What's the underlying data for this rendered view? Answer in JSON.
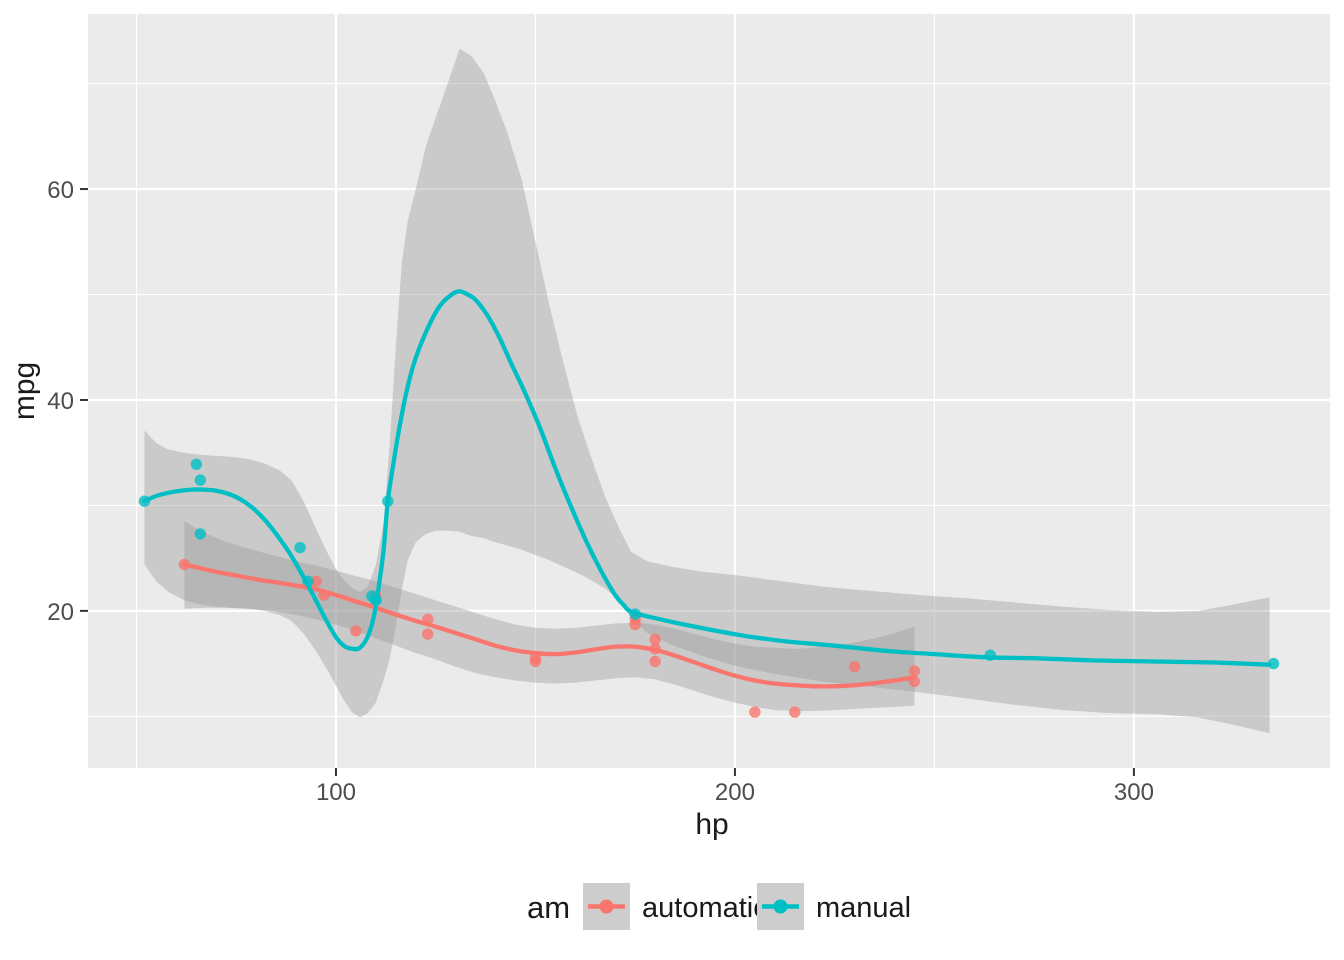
{
  "chart_data": {
    "type": "scatter",
    "title": "",
    "xlabel": "hp",
    "ylabel": "mpg",
    "xlim": [
      37.85,
      349.15
    ],
    "ylim": [
      5.1,
      76.6
    ],
    "x_ticks": {
      "major": [
        100,
        200,
        300
      ],
      "minor": [
        50,
        150,
        250,
        350
      ],
      "labels": [
        "100",
        "200",
        "300"
      ]
    },
    "y_ticks": {
      "major": [
        20,
        40,
        60
      ],
      "minor": [
        10,
        30,
        50,
        70
      ],
      "labels": [
        "20",
        "40",
        "60"
      ]
    },
    "grid": {
      "show": true,
      "color": "#FFFFFF",
      "major_width": 2.2,
      "minor_width": 1.1
    },
    "panel_bg": "#EBEBEB",
    "tick_color": "#333333",
    "tick_label_color": "#4D4D4D",
    "ribbon_color": "#999999",
    "ribbon_opacity": 0.4,
    "point_radius": 5.7,
    "line_width": 4.3,
    "legend": {
      "title": "am",
      "position": "bottom",
      "key_fill": "#CDCDCD",
      "items": [
        {
          "label": "automatic"
        },
        {
          "label": "manual"
        }
      ]
    },
    "series": [
      {
        "name": "automatic",
        "color": "#F8766D",
        "points": [
          [
            110,
            21.4
          ],
          [
            175,
            18.7
          ],
          [
            105,
            18.1
          ],
          [
            245,
            14.3
          ],
          [
            62,
            24.4
          ],
          [
            95,
            22.8
          ],
          [
            123,
            19.2
          ],
          [
            123,
            17.8
          ],
          [
            180,
            16.4
          ],
          [
            180,
            17.3
          ],
          [
            180,
            15.2
          ],
          [
            205,
            10.4
          ],
          [
            215,
            10.4
          ],
          [
            230,
            14.7
          ],
          [
            97,
            21.5
          ],
          [
            150,
            15.5
          ],
          [
            150,
            15.2
          ],
          [
            245,
            13.3
          ],
          [
            175,
            19.2
          ]
        ],
        "smooth": [
          [
            62,
            24.4
          ],
          [
            66,
            24.05
          ],
          [
            70,
            23.7
          ],
          [
            75,
            23.35
          ],
          [
            80,
            23.0
          ],
          [
            85,
            22.7
          ],
          [
            90,
            22.4
          ],
          [
            95,
            22.05
          ],
          [
            100,
            21.5
          ],
          [
            105,
            20.9
          ],
          [
            110,
            20.3
          ],
          [
            115,
            19.65
          ],
          [
            120,
            19.05
          ],
          [
            125,
            18.5
          ],
          [
            130,
            17.9
          ],
          [
            135,
            17.3
          ],
          [
            140,
            16.7
          ],
          [
            145,
            16.25
          ],
          [
            150,
            16.0
          ],
          [
            155,
            15.9
          ],
          [
            160,
            16.05
          ],
          [
            165,
            16.35
          ],
          [
            170,
            16.6
          ],
          [
            175,
            16.6
          ],
          [
            180,
            16.3
          ],
          [
            185,
            15.75
          ],
          [
            190,
            15.1
          ],
          [
            195,
            14.45
          ],
          [
            200,
            13.85
          ],
          [
            205,
            13.4
          ],
          [
            210,
            13.1
          ],
          [
            215,
            12.95
          ],
          [
            220,
            12.85
          ],
          [
            225,
            12.85
          ],
          [
            230,
            12.95
          ],
          [
            235,
            13.15
          ],
          [
            240,
            13.4
          ],
          [
            245,
            13.7
          ]
        ],
        "ribbon": [
          [
            62,
            20.2,
            28.5
          ],
          [
            67,
            20.3,
            27.4
          ],
          [
            72,
            20.3,
            26.6
          ],
          [
            78,
            20.2,
            25.9
          ],
          [
            84,
            20.0,
            25.3
          ],
          [
            90,
            19.6,
            24.7
          ],
          [
            95,
            19.2,
            24.3
          ],
          [
            100,
            18.7,
            23.8
          ],
          [
            105,
            18.1,
            23.3
          ],
          [
            110,
            17.4,
            22.8
          ],
          [
            115,
            16.7,
            22.2
          ],
          [
            120,
            16.0,
            21.6
          ],
          [
            125,
            15.4,
            21.0
          ],
          [
            130,
            14.7,
            20.4
          ],
          [
            135,
            14.1,
            19.8
          ],
          [
            140,
            13.7,
            19.2
          ],
          [
            145,
            13.4,
            18.7
          ],
          [
            150,
            13.2,
            18.4
          ],
          [
            155,
            13.1,
            18.3
          ],
          [
            160,
            13.2,
            18.4
          ],
          [
            165,
            13.4,
            18.6
          ],
          [
            170,
            13.6,
            18.8
          ],
          [
            175,
            13.7,
            18.9
          ],
          [
            180,
            13.5,
            18.7
          ],
          [
            185,
            13.0,
            18.3
          ],
          [
            190,
            12.4,
            17.8
          ],
          [
            195,
            11.8,
            17.3
          ],
          [
            200,
            11.3,
            16.9
          ],
          [
            205,
            10.9,
            16.6
          ],
          [
            210,
            10.6,
            16.5
          ],
          [
            215,
            10.5,
            16.4
          ],
          [
            220,
            10.5,
            16.5
          ],
          [
            225,
            10.6,
            16.7
          ],
          [
            230,
            10.7,
            17.0
          ],
          [
            235,
            10.8,
            17.4
          ],
          [
            240,
            10.9,
            17.9
          ],
          [
            245,
            11.0,
            18.5
          ]
        ]
      },
      {
        "name": "manual",
        "color": "#00BFC4",
        "points": [
          [
            110,
            21.0
          ],
          [
            110,
            21.0
          ],
          [
            93,
            22.8
          ],
          [
            66,
            32.4
          ],
          [
            52,
            30.4
          ],
          [
            65,
            33.9
          ],
          [
            66,
            27.3
          ],
          [
            91,
            26.0
          ],
          [
            113,
            30.4
          ],
          [
            264,
            15.8
          ],
          [
            175,
            19.7
          ],
          [
            335,
            15.0
          ],
          [
            109,
            21.4
          ]
        ],
        "smooth": [
          [
            52,
            30.4
          ],
          [
            55,
            30.9
          ],
          [
            58,
            31.2
          ],
          [
            61,
            31.4
          ],
          [
            64,
            31.5
          ],
          [
            67,
            31.5
          ],
          [
            70,
            31.4
          ],
          [
            73,
            31.1
          ],
          [
            76,
            30.6
          ],
          [
            79,
            29.8
          ],
          [
            82,
            28.7
          ],
          [
            85,
            27.3
          ],
          [
            88,
            25.7
          ],
          [
            91,
            23.8
          ],
          [
            94,
            21.7
          ],
          [
            97,
            19.5
          ],
          [
            100,
            17.5
          ],
          [
            102,
            16.7
          ],
          [
            104,
            16.4
          ],
          [
            106,
            16.5
          ],
          [
            108,
            17.6
          ],
          [
            109.5,
            19.5
          ],
          [
            111,
            23.0
          ],
          [
            112,
            26.0
          ],
          [
            113,
            30.4
          ],
          [
            114.5,
            34.2
          ],
          [
            116,
            37.6
          ],
          [
            118,
            41.3
          ],
          [
            120,
            44.0
          ],
          [
            123,
            46.8
          ],
          [
            126,
            48.9
          ],
          [
            129,
            50.0
          ],
          [
            131,
            50.3
          ],
          [
            133,
            50.0
          ],
          [
            135,
            49.5
          ],
          [
            138,
            48.0
          ],
          [
            141,
            45.9
          ],
          [
            144,
            43.4
          ],
          [
            147,
            41.0
          ],
          [
            151,
            37.5
          ],
          [
            155,
            33.5
          ],
          [
            159,
            29.8
          ],
          [
            163,
            26.4
          ],
          [
            167,
            23.4
          ],
          [
            170,
            21.5
          ],
          [
            172,
            20.6
          ],
          [
            174,
            19.9
          ],
          [
            179,
            19.4
          ],
          [
            186,
            18.8
          ],
          [
            194,
            18.2
          ],
          [
            203,
            17.6
          ],
          [
            213,
            17.1
          ],
          [
            225,
            16.7
          ],
          [
            238,
            16.2
          ],
          [
            250,
            15.9
          ],
          [
            263,
            15.6
          ],
          [
            276,
            15.5
          ],
          [
            290,
            15.3
          ],
          [
            305,
            15.2
          ],
          [
            320,
            15.1
          ],
          [
            334,
            14.9
          ]
        ],
        "ribbon": [
          [
            52,
            24.4,
            37.1
          ],
          [
            55,
            22.8,
            35.9
          ],
          [
            58,
            21.8,
            35.3
          ],
          [
            62,
            21.0,
            35.0
          ],
          [
            66,
            20.6,
            34.8
          ],
          [
            70,
            20.4,
            34.7
          ],
          [
            74,
            20.3,
            34.6
          ],
          [
            78,
            20.2,
            34.4
          ],
          [
            82,
            20.0,
            34.0
          ],
          [
            86,
            19.6,
            33.3
          ],
          [
            89,
            19.0,
            32.3
          ],
          [
            92,
            17.8,
            30.3
          ],
          [
            95,
            16.2,
            27.8
          ],
          [
            98,
            14.3,
            25.4
          ],
          [
            100,
            12.9,
            24.0
          ],
          [
            102,
            11.5,
            22.9
          ],
          [
            104,
            10.4,
            22.2
          ],
          [
            106,
            9.9,
            21.8
          ],
          [
            108,
            10.3,
            22.3
          ],
          [
            110,
            11.3,
            24.4
          ],
          [
            112,
            13.5,
            28.5
          ],
          [
            113.5,
            15.5,
            36.0
          ],
          [
            115,
            18.5,
            45.0
          ],
          [
            116.5,
            22.0,
            53.0
          ],
          [
            118,
            24.8,
            57.0
          ],
          [
            120,
            26.5,
            60.0
          ],
          [
            122.5,
            27.3,
            64.0
          ],
          [
            125,
            27.6,
            66.8
          ],
          [
            128,
            27.6,
            70.0
          ],
          [
            131,
            27.5,
            73.3
          ],
          [
            134,
            27.1,
            72.6
          ],
          [
            137,
            26.9,
            71.0
          ],
          [
            140,
            26.5,
            68.3
          ],
          [
            143,
            26.2,
            65.3
          ],
          [
            146.5,
            25.8,
            61.0
          ],
          [
            150,
            25.3,
            55.0
          ],
          [
            153.5,
            24.8,
            49.0
          ],
          [
            157,
            24.2,
            43.5
          ],
          [
            160.5,
            23.6,
            38.5
          ],
          [
            164,
            22.9,
            34.5
          ],
          [
            167.5,
            22.1,
            30.8
          ],
          [
            171,
            21.0,
            27.8
          ],
          [
            174,
            19.3,
            25.6
          ],
          [
            178,
            17.9,
            24.7
          ],
          [
            184,
            16.8,
            24.2
          ],
          [
            192,
            15.7,
            23.7
          ],
          [
            200,
            14.8,
            23.4
          ],
          [
            210,
            14.0,
            22.9
          ],
          [
            222,
            13.3,
            22.3
          ],
          [
            234,
            12.8,
            21.9
          ],
          [
            246,
            12.3,
            21.5
          ],
          [
            258,
            11.7,
            21.2
          ],
          [
            270,
            11.1,
            20.8
          ],
          [
            282,
            10.6,
            20.4
          ],
          [
            294,
            10.3,
            20.1
          ],
          [
            306,
            10.2,
            19.9
          ],
          [
            316,
            9.9,
            20.0
          ],
          [
            325,
            9.2,
            20.6
          ],
          [
            334,
            8.4,
            21.3
          ]
        ]
      }
    ]
  }
}
